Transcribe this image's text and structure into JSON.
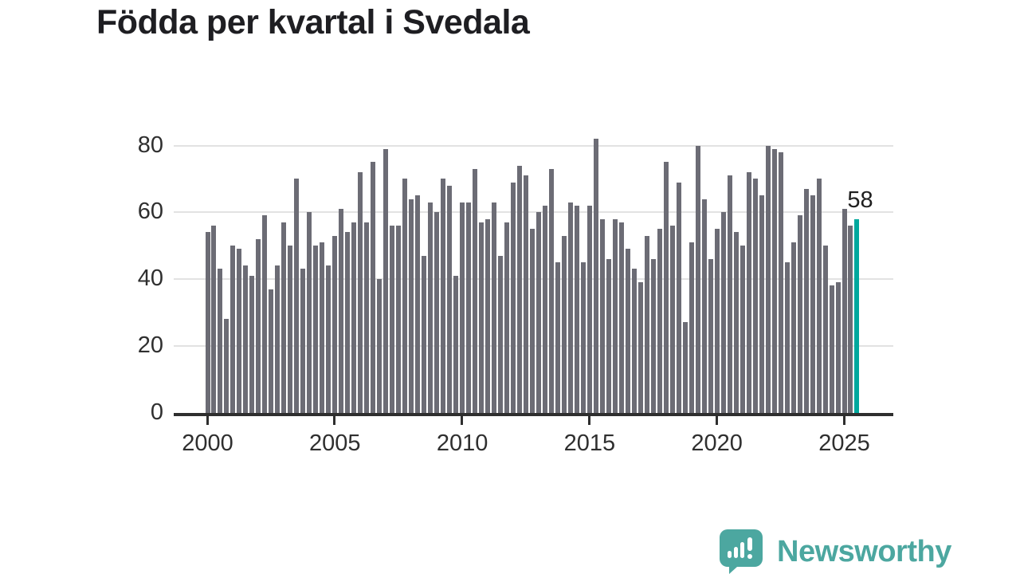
{
  "chart_data": {
    "type": "bar",
    "title": "Födda per kvartal i Svedala",
    "categories": [
      "2000Q1",
      "2000Q2",
      "2000Q3",
      "2000Q4",
      "2001Q1",
      "2001Q2",
      "2001Q3",
      "2001Q4",
      "2002Q1",
      "2002Q2",
      "2002Q3",
      "2002Q4",
      "2003Q1",
      "2003Q2",
      "2003Q3",
      "2003Q4",
      "2004Q1",
      "2004Q2",
      "2004Q3",
      "2004Q4",
      "2005Q1",
      "2005Q2",
      "2005Q3",
      "2005Q4",
      "2006Q1",
      "2006Q2",
      "2006Q3",
      "2006Q4",
      "2007Q1",
      "2007Q2",
      "2007Q3",
      "2007Q4",
      "2008Q1",
      "2008Q2",
      "2008Q3",
      "2008Q4",
      "2009Q1",
      "2009Q2",
      "2009Q3",
      "2009Q4",
      "2010Q1",
      "2010Q2",
      "2010Q3",
      "2010Q4",
      "2011Q1",
      "2011Q2",
      "2011Q3",
      "2011Q4",
      "2012Q1",
      "2012Q2",
      "2012Q3",
      "2012Q4",
      "2013Q1",
      "2013Q2",
      "2013Q3",
      "2013Q4",
      "2014Q1",
      "2014Q2",
      "2014Q3",
      "2014Q4",
      "2015Q1",
      "2015Q2",
      "2015Q3",
      "2015Q4",
      "2016Q1",
      "2016Q2",
      "2016Q3",
      "2016Q4",
      "2017Q1",
      "2017Q2",
      "2017Q3",
      "2017Q4",
      "2018Q1",
      "2018Q2",
      "2018Q3",
      "2018Q4",
      "2019Q1",
      "2019Q2",
      "2019Q3",
      "2019Q4",
      "2020Q1",
      "2020Q2",
      "2020Q3",
      "2020Q4",
      "2021Q1",
      "2021Q2",
      "2021Q3",
      "2021Q4",
      "2022Q1",
      "2022Q2",
      "2022Q3",
      "2022Q4",
      "2023Q1",
      "2023Q2",
      "2023Q3",
      "2023Q4",
      "2024Q1",
      "2024Q2",
      "2024Q3",
      "2024Q4",
      "2025Q1",
      "2025Q2",
      "2025Q3"
    ],
    "values": [
      54,
      56,
      43,
      28,
      50,
      49,
      44,
      41,
      52,
      59,
      37,
      44,
      57,
      50,
      70,
      43,
      60,
      50,
      51,
      44,
      53,
      61,
      54,
      57,
      72,
      57,
      75,
      40,
      79,
      56,
      56,
      70,
      64,
      65,
      47,
      63,
      60,
      70,
      68,
      41,
      63,
      63,
      73,
      57,
      58,
      63,
      47,
      57,
      69,
      74,
      71,
      55,
      60,
      62,
      73,
      45,
      53,
      63,
      62,
      45,
      62,
      82,
      58,
      46,
      58,
      57,
      49,
      43,
      39,
      53,
      46,
      55,
      75,
      56,
      69,
      27,
      51,
      80,
      64,
      46,
      55,
      60,
      71,
      54,
      50,
      72,
      70,
      65,
      80,
      79,
      78,
      45,
      51,
      59,
      67,
      65,
      70,
      50,
      38,
      39,
      61,
      56,
      58
    ],
    "xlabel": "",
    "ylabel": "",
    "y_ticks": [
      0,
      20,
      40,
      60,
      80
    ],
    "x_ticks": [
      "2000",
      "2005",
      "2010",
      "2015",
      "2020",
      "2025"
    ],
    "ylim": [
      0,
      88
    ],
    "grid": "horizontal",
    "legend": "none",
    "bar_color": "#6c6c75",
    "highlight_last": true,
    "highlight_color": "#00a89d",
    "last_value_label": "58"
  },
  "footer": {
    "brand": "Newsworthy",
    "brand_color": "#4ca7a0"
  }
}
